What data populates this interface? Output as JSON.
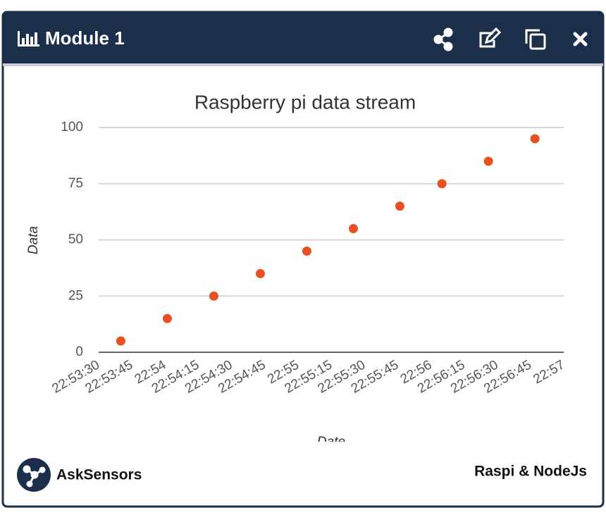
{
  "header": {
    "title": "Module 1"
  },
  "chart_data": {
    "type": "scatter",
    "title": "Raspberry pi data stream",
    "x_label": "Date",
    "y_label": "Data",
    "color": "#e8501f",
    "x": [
      "22:53:40",
      "22:54:01",
      "22:54:22",
      "22:54:43",
      "22:55:04",
      "22:55:25",
      "22:55:46",
      "22:56:05",
      "22:56:26",
      "22:56:47"
    ],
    "values": [
      5,
      15,
      25,
      35,
      45,
      55,
      65,
      75,
      85,
      95
    ],
    "xlim": [
      "22:53:30",
      "22:57"
    ],
    "xticks": [
      "22:53:30",
      "22:53:45",
      "22:54",
      "22:54:15",
      "22:54:30",
      "22:54:45",
      "22:55",
      "22:55:15",
      "22:55:30",
      "22:55:45",
      "22:56",
      "22:56:15",
      "22:56:30",
      "22:56:45",
      "22:57"
    ],
    "ylim": [
      0,
      100
    ],
    "yticks": [
      0,
      25,
      50,
      75,
      100
    ],
    "grid": true
  },
  "footer": {
    "brand": "AskSensors",
    "note": "Raspi & NodeJs"
  }
}
